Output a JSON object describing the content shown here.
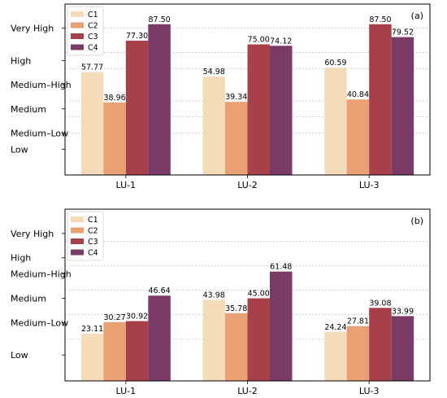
{
  "chart_data": [
    {
      "type": "bar",
      "panel_label": "(a)",
      "categories": [
        "LU-1",
        "LU-2",
        "LU-3"
      ],
      "series": [
        {
          "name": "C1",
          "values": [
            57.77,
            54.98,
            60.59
          ],
          "color": "#f4dcb8"
        },
        {
          "name": "C2",
          "values": [
            38.96,
            39.34,
            40.84
          ],
          "color": "#e8a074"
        },
        {
          "name": "C3",
          "values": [
            77.3,
            75.0,
            87.5
          ],
          "color": "#a8404a"
        },
        {
          "name": "C4",
          "values": [
            87.5,
            74.12,
            79.52
          ],
          "color": "#7a3b66"
        }
      ],
      "y_ticks": [
        {
          "label": "Low",
          "value": 10
        },
        {
          "label": "Medium–Low",
          "value": 20
        },
        {
          "label": "Medium",
          "value": 35
        },
        {
          "label": "Medium–High",
          "value": 50
        },
        {
          "label": "High",
          "value": 65
        },
        {
          "label": "Very High",
          "value": 85
        }
      ],
      "gridlines": [
        20,
        30,
        40,
        60,
        70,
        85
      ],
      "ylim": [
        -6,
        100
      ],
      "legend_position": "top-left",
      "grid": true
    },
    {
      "type": "bar",
      "panel_label": "(b)",
      "categories": [
        "LU-1",
        "LU-2",
        "LU-3"
      ],
      "series": [
        {
          "name": "C1",
          "values": [
            23.11,
            43.98,
            24.24
          ],
          "color": "#f4dcb8"
        },
        {
          "name": "C2",
          "values": [
            30.27,
            35.78,
            27.81
          ],
          "color": "#e8a074"
        },
        {
          "name": "C3",
          "values": [
            30.92,
            45.0,
            39.08
          ],
          "color": "#a8404a"
        },
        {
          "name": "C4",
          "values": [
            46.64,
            61.48,
            33.99
          ],
          "color": "#7a3b66"
        }
      ],
      "y_ticks": [
        {
          "label": "Low",
          "value": 10
        },
        {
          "label": "Medium–Low",
          "value": 30
        },
        {
          "label": "Medium",
          "value": 45
        },
        {
          "label": "Medium–High",
          "value": 60
        },
        {
          "label": "High",
          "value": 70
        },
        {
          "label": "Very High",
          "value": 85
        }
      ],
      "gridlines": [
        20,
        35,
        50,
        65,
        80
      ],
      "ylim": [
        -6,
        100
      ],
      "legend_position": "top-left",
      "grid": true
    }
  ]
}
